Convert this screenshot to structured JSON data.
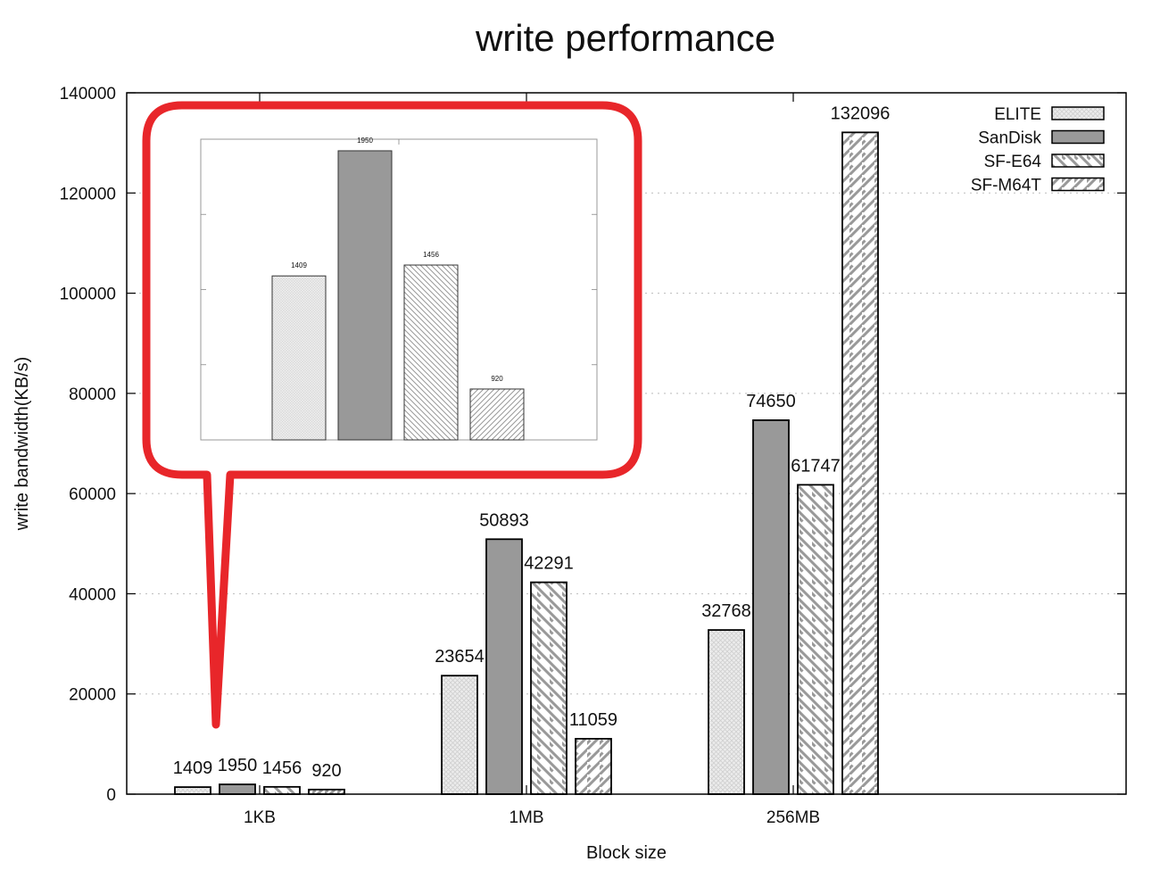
{
  "chart_data": {
    "type": "bar",
    "title": "write performance",
    "xlabel": "Block size",
    "ylabel": "write bandwidth(KB/s)",
    "ylim": [
      0,
      140000
    ],
    "yticks": [
      0,
      20000,
      40000,
      60000,
      80000,
      100000,
      120000,
      140000
    ],
    "ytick_labels": [
      "0",
      "20000",
      "40000",
      "60000",
      "80000",
      "100000",
      "120000",
      "140000"
    ],
    "grid": true,
    "legend_position": "top-right",
    "categories": [
      "1KB",
      "1MB",
      "256MB"
    ],
    "series": [
      {
        "name": "ELITE",
        "values": [
          1409,
          23654,
          32768
        ],
        "labels": [
          "1409",
          "23654",
          "32768"
        ],
        "pattern": "crosshatch",
        "color": "#e8e8e8"
      },
      {
        "name": "SanDisk",
        "values": [
          1950,
          50893,
          74650
        ],
        "labels": [
          "1950",
          "50893",
          "74650"
        ],
        "pattern": "solid",
        "color": "#999999"
      },
      {
        "name": "SF-E64",
        "values": [
          1456,
          42291,
          61747
        ],
        "labels": [
          "1456",
          "42291",
          "61747"
        ],
        "pattern": "backslash",
        "color": "#999999"
      },
      {
        "name": "SF-M64T",
        "values": [
          920,
          11059,
          132096
        ],
        "labels": [
          "920",
          "11059",
          "132096"
        ],
        "pattern": "slash",
        "color": "#999999"
      }
    ],
    "inset": {
      "category": "1KB",
      "values": [
        1409,
        1950,
        1456,
        920
      ],
      "labels": [
        "1409",
        "1950",
        "1456",
        "920"
      ],
      "callout_color": "#e8262a"
    }
  }
}
